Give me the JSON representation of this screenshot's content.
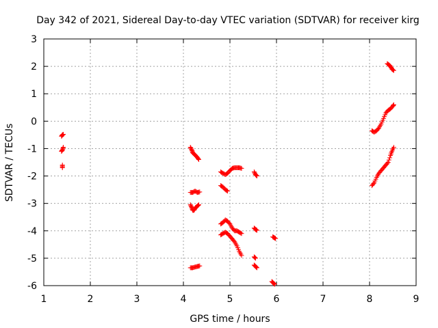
{
  "chart_data": {
    "type": "scatter",
    "title": "Day 342 of 2021, Sidereal Day-to-day VTEC variation (SDTVAR) for receiver kirg",
    "xlabel": "GPS time / hours",
    "ylabel": "SDTVAR / TECUs",
    "xlim": [
      1,
      9
    ],
    "ylim": [
      -6,
      3
    ],
    "xticks": [
      "1",
      "2",
      "3",
      "4",
      "5",
      "6",
      "7",
      "8",
      "9"
    ],
    "yticks": [
      "-6",
      "-5",
      "-4",
      "-3",
      "-2",
      "-1",
      "0",
      "1",
      "2",
      "3"
    ],
    "grid": true,
    "marker": "plus",
    "series": [
      {
        "color": "#ff0000",
        "segments": [
          [
            [
              1.38,
              -0.55
            ],
            [
              1.4,
              -0.5
            ],
            [
              1.42,
              -0.48
            ]
          ],
          [
            [
              1.38,
              -1.1
            ],
            [
              1.4,
              -1.05
            ],
            [
              1.42,
              -0.95
            ]
          ],
          [
            [
              1.4,
              -1.6
            ],
            [
              1.4,
              -1.7
            ]
          ],
          [
            [
              4.15,
              -0.95
            ],
            [
              4.18,
              -1.05
            ],
            [
              4.2,
              -1.15
            ],
            [
              4.23,
              -1.2
            ],
            [
              4.26,
              -1.25
            ],
            [
              4.3,
              -1.32
            ],
            [
              4.33,
              -1.4
            ]
          ],
          [
            [
              4.15,
              -2.6
            ],
            [
              4.2,
              -2.6
            ],
            [
              4.25,
              -2.55
            ],
            [
              4.3,
              -2.6
            ],
            [
              4.35,
              -2.58
            ]
          ],
          [
            [
              4.15,
              -3.05
            ],
            [
              4.18,
              -3.15
            ],
            [
              4.2,
              -3.25
            ],
            [
              4.23,
              -3.25
            ],
            [
              4.26,
              -3.15
            ],
            [
              4.3,
              -3.1
            ],
            [
              4.33,
              -3.05
            ]
          ],
          [
            [
              4.15,
              -5.35
            ],
            [
              4.2,
              -5.35
            ],
            [
              4.25,
              -5.32
            ],
            [
              4.3,
              -5.3
            ],
            [
              4.35,
              -5.28
            ]
          ],
          [
            [
              4.8,
              -1.85
            ],
            [
              4.85,
              -1.9
            ],
            [
              4.9,
              -1.95
            ],
            [
              4.95,
              -1.9
            ],
            [
              5.0,
              -1.8
            ],
            [
              5.05,
              -1.72
            ],
            [
              5.1,
              -1.7
            ],
            [
              5.15,
              -1.7
            ],
            [
              5.2,
              -1.7
            ],
            [
              5.25,
              -1.72
            ]
          ],
          [
            [
              4.8,
              -2.35
            ],
            [
              4.85,
              -2.4
            ],
            [
              4.9,
              -2.5
            ],
            [
              4.95,
              -2.55
            ]
          ],
          [
            [
              4.8,
              -3.75
            ],
            [
              4.85,
              -3.7
            ],
            [
              4.9,
              -3.6
            ],
            [
              4.95,
              -3.65
            ],
            [
              5.0,
              -3.75
            ],
            [
              5.05,
              -3.9
            ],
            [
              5.1,
              -4.0
            ],
            [
              5.15,
              -4.0
            ],
            [
              5.2,
              -4.05
            ],
            [
              5.25,
              -4.1
            ]
          ],
          [
            [
              4.8,
              -4.15
            ],
            [
              4.85,
              -4.1
            ],
            [
              4.9,
              -4.05
            ],
            [
              4.95,
              -4.1
            ],
            [
              5.0,
              -4.2
            ],
            [
              5.05,
              -4.3
            ],
            [
              5.1,
              -4.4
            ],
            [
              5.15,
              -4.55
            ],
            [
              5.2,
              -4.75
            ],
            [
              5.25,
              -4.9
            ]
          ],
          [
            [
              5.52,
              -1.85
            ],
            [
              5.55,
              -1.95
            ],
            [
              5.58,
              -2.0
            ]
          ],
          [
            [
              5.52,
              -3.9
            ],
            [
              5.55,
              -3.95
            ],
            [
              5.58,
              -3.98
            ]
          ],
          [
            [
              5.52,
              -4.95
            ],
            [
              5.55,
              -5.0
            ]
          ],
          [
            [
              5.52,
              -5.25
            ],
            [
              5.55,
              -5.3
            ],
            [
              5.58,
              -5.35
            ]
          ],
          [
            [
              5.92,
              -4.22
            ],
            [
              5.95,
              -4.25
            ],
            [
              5.98,
              -4.28
            ]
          ],
          [
            [
              5.9,
              -5.85
            ],
            [
              5.93,
              -5.9
            ],
            [
              5.96,
              -5.95
            ]
          ],
          [
            [
              8.05,
              -0.35
            ],
            [
              8.1,
              -0.4
            ],
            [
              8.15,
              -0.35
            ],
            [
              8.2,
              -0.25
            ],
            [
              8.25,
              -0.1
            ],
            [
              8.3,
              0.1
            ],
            [
              8.35,
              0.3
            ],
            [
              8.4,
              0.4
            ],
            [
              8.45,
              0.45
            ],
            [
              8.5,
              0.55
            ],
            [
              8.52,
              0.6
            ]
          ],
          [
            [
              8.05,
              -2.35
            ],
            [
              8.1,
              -2.25
            ],
            [
              8.15,
              -2.05
            ],
            [
              8.2,
              -1.9
            ],
            [
              8.25,
              -1.8
            ],
            [
              8.3,
              -1.7
            ],
            [
              8.35,
              -1.6
            ],
            [
              8.4,
              -1.5
            ],
            [
              8.45,
              -1.25
            ],
            [
              8.48,
              -1.1
            ],
            [
              8.52,
              -0.95
            ]
          ],
          [
            [
              8.38,
              2.1
            ],
            [
              8.42,
              2.05
            ],
            [
              8.45,
              2.0
            ],
            [
              8.48,
              1.9
            ],
            [
              8.52,
              1.85
            ]
          ]
        ]
      }
    ]
  }
}
